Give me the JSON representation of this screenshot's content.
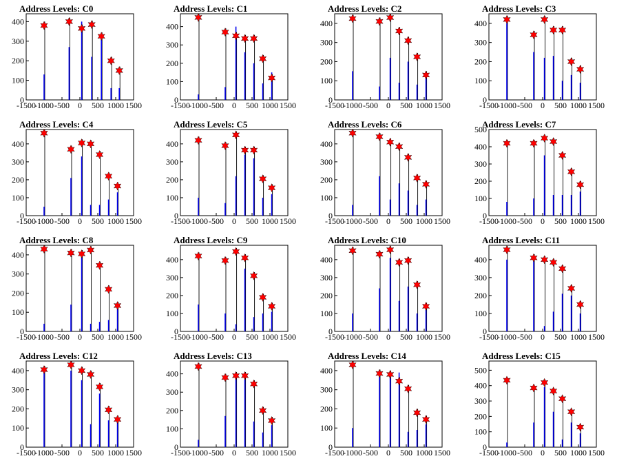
{
  "figure": {
    "title_prefix": "Address Levels: "
  },
  "chart_data": [
    {
      "type": "bar",
      "title": "Address Levels: C0",
      "xlim": [
        -1500,
        1500
      ],
      "ylim": [
        0,
        440
      ],
      "yticks": [
        0,
        100,
        200,
        300,
        400
      ],
      "xticks": [
        -1500,
        -1000,
        -500,
        0,
        500,
        1000,
        1500
      ],
      "peaks": [
        {
          "x": -1000,
          "blue": 130,
          "star": 380
        },
        {
          "x": -300,
          "blue": 270,
          "star": 400
        },
        {
          "x": 50,
          "blue": 400,
          "star": 365
        },
        {
          "x": 330,
          "blue": 220,
          "star": 385
        },
        {
          "x": 600,
          "blue": 320,
          "star": 325
        },
        {
          "x": 870,
          "blue": 60,
          "star": 200
        },
        {
          "x": 1100,
          "blue": 60,
          "star": 150
        }
      ]
    },
    {
      "type": "bar",
      "title": "Address Levels: C1",
      "xlim": [
        -1500,
        1500
      ],
      "ylim": [
        0,
        470
      ],
      "yticks": [
        0,
        100,
        200,
        300,
        400
      ],
      "xticks": [
        -1500,
        -1000,
        -500,
        0,
        500,
        1000,
        1500
      ],
      "peaks": [
        {
          "x": -1000,
          "blue": 30,
          "star": 450
        },
        {
          "x": -250,
          "blue": 70,
          "star": 370
        },
        {
          "x": 50,
          "blue": 400,
          "star": 350
        },
        {
          "x": 300,
          "blue": 260,
          "star": 335
        },
        {
          "x": 550,
          "blue": 200,
          "star": 335
        },
        {
          "x": 800,
          "blue": 90,
          "star": 225
        },
        {
          "x": 1050,
          "blue": 150,
          "star": 120
        }
      ]
    },
    {
      "type": "bar",
      "title": "Address Levels: C2",
      "xlim": [
        -1500,
        1500
      ],
      "ylim": [
        0,
        450
      ],
      "yticks": [
        0,
        100,
        200,
        300,
        400
      ],
      "xticks": [
        -1500,
        -1000,
        -500,
        0,
        500,
        1000,
        1500
      ],
      "peaks": [
        {
          "x": -1000,
          "blue": 150,
          "star": 425
        },
        {
          "x": -250,
          "blue": 70,
          "star": 410
        },
        {
          "x": 50,
          "blue": 220,
          "star": 430
        },
        {
          "x": 300,
          "blue": 90,
          "star": 360
        },
        {
          "x": 550,
          "blue": 200,
          "star": 310
        },
        {
          "x": 800,
          "blue": 80,
          "star": 225
        },
        {
          "x": 1050,
          "blue": 120,
          "star": 130
        }
      ]
    },
    {
      "type": "bar",
      "title": "Address Levels: C3",
      "xlim": [
        -1500,
        1500
      ],
      "ylim": [
        0,
        450
      ],
      "yticks": [
        0,
        100,
        200,
        300,
        400
      ],
      "xticks": [
        -1500,
        -1000,
        -500,
        0,
        500,
        1000,
        1500
      ],
      "peaks": [
        {
          "x": -1000,
          "blue": 400,
          "star": 420
        },
        {
          "x": -250,
          "blue": 250,
          "star": 340
        },
        {
          "x": 50,
          "blue": 220,
          "star": 420
        },
        {
          "x": 300,
          "blue": 230,
          "star": 365
        },
        {
          "x": 550,
          "blue": 100,
          "star": 365
        },
        {
          "x": 800,
          "blue": 130,
          "star": 200
        },
        {
          "x": 1050,
          "blue": 90,
          "star": 160
        }
      ]
    },
    {
      "type": "bar",
      "title": "Address Levels: C4",
      "xlim": [
        -1500,
        1500
      ],
      "ylim": [
        0,
        480
      ],
      "yticks": [
        0,
        100,
        200,
        300,
        400
      ],
      "xticks": [
        -1500,
        -1000,
        -500,
        0,
        500,
        1000,
        1500
      ],
      "peaks": [
        {
          "x": -1000,
          "blue": 50,
          "star": 460
        },
        {
          "x": -250,
          "blue": 210,
          "star": 370
        },
        {
          "x": 50,
          "blue": 330,
          "star": 405
        },
        {
          "x": 300,
          "blue": 60,
          "star": 400
        },
        {
          "x": 550,
          "blue": 60,
          "star": 340
        },
        {
          "x": 800,
          "blue": 90,
          "star": 220
        },
        {
          "x": 1050,
          "blue": 130,
          "star": 165
        }
      ]
    },
    {
      "type": "bar",
      "title": "Address Levels: C5",
      "xlim": [
        -1500,
        1500
      ],
      "ylim": [
        0,
        480
      ],
      "yticks": [
        0,
        100,
        200,
        300,
        400
      ],
      "xticks": [
        -1500,
        -1000,
        -500,
        0,
        500,
        1000,
        1500
      ],
      "peaks": [
        {
          "x": -1000,
          "blue": 100,
          "star": 420
        },
        {
          "x": -250,
          "blue": 70,
          "star": 390
        },
        {
          "x": 50,
          "blue": 220,
          "star": 450
        },
        {
          "x": 300,
          "blue": 340,
          "star": 365
        },
        {
          "x": 550,
          "blue": 320,
          "star": 365
        },
        {
          "x": 800,
          "blue": 100,
          "star": 205
        },
        {
          "x": 1050,
          "blue": 120,
          "star": 155
        }
      ]
    },
    {
      "type": "bar",
      "title": "Address Levels: C6",
      "xlim": [
        -1500,
        1500
      ],
      "ylim": [
        0,
        480
      ],
      "yticks": [
        0,
        100,
        200,
        300,
        400
      ],
      "xticks": [
        -1500,
        -1000,
        -500,
        0,
        500,
        1000,
        1500
      ],
      "peaks": [
        {
          "x": -1000,
          "blue": 60,
          "star": 460
        },
        {
          "x": -250,
          "blue": 220,
          "star": 440
        },
        {
          "x": 50,
          "blue": 90,
          "star": 410
        },
        {
          "x": 300,
          "blue": 180,
          "star": 385
        },
        {
          "x": 550,
          "blue": 140,
          "star": 325
        },
        {
          "x": 800,
          "blue": 60,
          "star": 210
        },
        {
          "x": 1050,
          "blue": 90,
          "star": 175
        }
      ]
    },
    {
      "type": "bar",
      "title": "Address Levels: C7",
      "xlim": [
        -1500,
        1500
      ],
      "ylim": [
        0,
        500
      ],
      "yticks": [
        0,
        100,
        200,
        300,
        400,
        500
      ],
      "xticks": [
        -1500,
        -1000,
        -500,
        0,
        500,
        1000,
        1500
      ],
      "peaks": [
        {
          "x": -1000,
          "blue": 80,
          "star": 420
        },
        {
          "x": -250,
          "blue": 100,
          "star": 420
        },
        {
          "x": 50,
          "blue": 350,
          "star": 450
        },
        {
          "x": 300,
          "blue": 120,
          "star": 430
        },
        {
          "x": 550,
          "blue": 120,
          "star": 350
        },
        {
          "x": 800,
          "blue": 120,
          "star": 255
        },
        {
          "x": 1050,
          "blue": 140,
          "star": 180
        }
      ]
    },
    {
      "type": "bar",
      "title": "Address Levels: C8",
      "xlim": [
        -1500,
        1500
      ],
      "ylim": [
        0,
        450
      ],
      "yticks": [
        0,
        100,
        200,
        300,
        400
      ],
      "xticks": [
        -1500,
        -1000,
        -500,
        0,
        500,
        1000,
        1500
      ],
      "peaks": [
        {
          "x": -1000,
          "blue": 40,
          "star": 430
        },
        {
          "x": -250,
          "blue": 140,
          "star": 410
        },
        {
          "x": 50,
          "blue": 400,
          "star": 405
        },
        {
          "x": 300,
          "blue": 40,
          "star": 425
        },
        {
          "x": 550,
          "blue": 50,
          "star": 345
        },
        {
          "x": 800,
          "blue": 60,
          "star": 220
        },
        {
          "x": 1050,
          "blue": 130,
          "star": 135
        }
      ]
    },
    {
      "type": "bar",
      "title": "Address Levels: C9",
      "xlim": [
        -1500,
        1500
      ],
      "ylim": [
        0,
        480
      ],
      "yticks": [
        0,
        100,
        200,
        300,
        400
      ],
      "xticks": [
        -1500,
        -1000,
        -500,
        0,
        500,
        1000,
        1500
      ],
      "peaks": [
        {
          "x": -1000,
          "blue": 150,
          "star": 420
        },
        {
          "x": -250,
          "blue": 100,
          "star": 395
        },
        {
          "x": 50,
          "blue": 40,
          "star": 445
        },
        {
          "x": 300,
          "blue": 350,
          "star": 410
        },
        {
          "x": 550,
          "blue": 80,
          "star": 310
        },
        {
          "x": 800,
          "blue": 100,
          "star": 190
        },
        {
          "x": 1050,
          "blue": 110,
          "star": 140
        }
      ]
    },
    {
      "type": "bar",
      "title": "Address Levels: C10",
      "xlim": [
        -1500,
        1500
      ],
      "ylim": [
        0,
        480
      ],
      "yticks": [
        0,
        100,
        200,
        300,
        400
      ],
      "xticks": [
        -1500,
        -1000,
        -500,
        0,
        500,
        1000,
        1500
      ],
      "peaks": [
        {
          "x": -1000,
          "blue": 100,
          "star": 450
        },
        {
          "x": -250,
          "blue": 240,
          "star": 430
        },
        {
          "x": 50,
          "blue": 410,
          "star": 455
        },
        {
          "x": 300,
          "blue": 170,
          "star": 385
        },
        {
          "x": 550,
          "blue": 250,
          "star": 395
        },
        {
          "x": 800,
          "blue": 100,
          "star": 260
        },
        {
          "x": 1050,
          "blue": 120,
          "star": 140
        }
      ]
    },
    {
      "type": "bar",
      "title": "Address Levels: C11",
      "xlim": [
        -1500,
        1500
      ],
      "ylim": [
        0,
        480
      ],
      "yticks": [
        0,
        100,
        200,
        300,
        400
      ],
      "xticks": [
        -1500,
        -1000,
        -500,
        0,
        500,
        1000,
        1500
      ],
      "peaks": [
        {
          "x": -1000,
          "blue": 400,
          "star": 455
        },
        {
          "x": -250,
          "blue": 400,
          "star": 410
        },
        {
          "x": 50,
          "blue": 30,
          "star": 400
        },
        {
          "x": 300,
          "blue": 110,
          "star": 385
        },
        {
          "x": 550,
          "blue": 210,
          "star": 350
        },
        {
          "x": 800,
          "blue": 200,
          "star": 240
        },
        {
          "x": 1050,
          "blue": 100,
          "star": 150
        }
      ]
    },
    {
      "type": "bar",
      "title": "Address Levels: C12",
      "xlim": [
        -1500,
        1500
      ],
      "ylim": [
        0,
        450
      ],
      "yticks": [
        0,
        100,
        200,
        300,
        400
      ],
      "xticks": [
        -1500,
        -1000,
        -500,
        0,
        500,
        1000,
        1500
      ],
      "peaks": [
        {
          "x": -1000,
          "blue": 400,
          "star": 405
        },
        {
          "x": -250,
          "blue": 400,
          "star": 430
        },
        {
          "x": 50,
          "blue": 350,
          "star": 400
        },
        {
          "x": 300,
          "blue": 120,
          "star": 380
        },
        {
          "x": 550,
          "blue": 280,
          "star": 315
        },
        {
          "x": 800,
          "blue": 140,
          "star": 195
        },
        {
          "x": 1050,
          "blue": 150,
          "star": 145
        }
      ]
    },
    {
      "type": "bar",
      "title": "Address Levels: C13",
      "xlim": [
        -1500,
        1500
      ],
      "ylim": [
        0,
        470
      ],
      "yticks": [
        0,
        100,
        200,
        300,
        400
      ],
      "xticks": [
        -1500,
        -1000,
        -500,
        0,
        500,
        1000,
        1500
      ],
      "peaks": [
        {
          "x": -1000,
          "blue": 40,
          "star": 440
        },
        {
          "x": -250,
          "blue": 170,
          "star": 380
        },
        {
          "x": 50,
          "blue": 390,
          "star": 390
        },
        {
          "x": 300,
          "blue": 370,
          "star": 390
        },
        {
          "x": 550,
          "blue": 140,
          "star": 345
        },
        {
          "x": 800,
          "blue": 80,
          "star": 200
        },
        {
          "x": 1050,
          "blue": 120,
          "star": 145
        }
      ]
    },
    {
      "type": "bar",
      "title": "Address Levels: C14",
      "xlim": [
        -1500,
        1500
      ],
      "ylim": [
        0,
        450
      ],
      "yticks": [
        0,
        100,
        200,
        300,
        400
      ],
      "xticks": [
        -1500,
        -1000,
        -500,
        0,
        500,
        1000,
        1500
      ],
      "peaks": [
        {
          "x": -1000,
          "blue": 100,
          "star": 430
        },
        {
          "x": -250,
          "blue": 380,
          "star": 385
        },
        {
          "x": 50,
          "blue": 380,
          "star": 380
        },
        {
          "x": 300,
          "blue": 390,
          "star": 345
        },
        {
          "x": 550,
          "blue": 80,
          "star": 305
        },
        {
          "x": 800,
          "blue": 90,
          "star": 180
        },
        {
          "x": 1050,
          "blue": 120,
          "star": 145
        }
      ]
    },
    {
      "type": "bar",
      "title": "Address Levels: C15",
      "xlim": [
        -1500,
        1500
      ],
      "ylim": [
        0,
        560
      ],
      "yticks": [
        0,
        100,
        200,
        300,
        400,
        500
      ],
      "xticks": [
        -1500,
        -1000,
        -500,
        0,
        500,
        1000,
        1500
      ],
      "peaks": [
        {
          "x": -1000,
          "blue": 30,
          "star": 435
        },
        {
          "x": -250,
          "blue": 160,
          "star": 385
        },
        {
          "x": 50,
          "blue": 390,
          "star": 420
        },
        {
          "x": 300,
          "blue": 230,
          "star": 365
        },
        {
          "x": 550,
          "blue": 50,
          "star": 315
        },
        {
          "x": 800,
          "blue": 160,
          "star": 230
        },
        {
          "x": 1050,
          "blue": 90,
          "star": 130
        }
      ]
    }
  ]
}
